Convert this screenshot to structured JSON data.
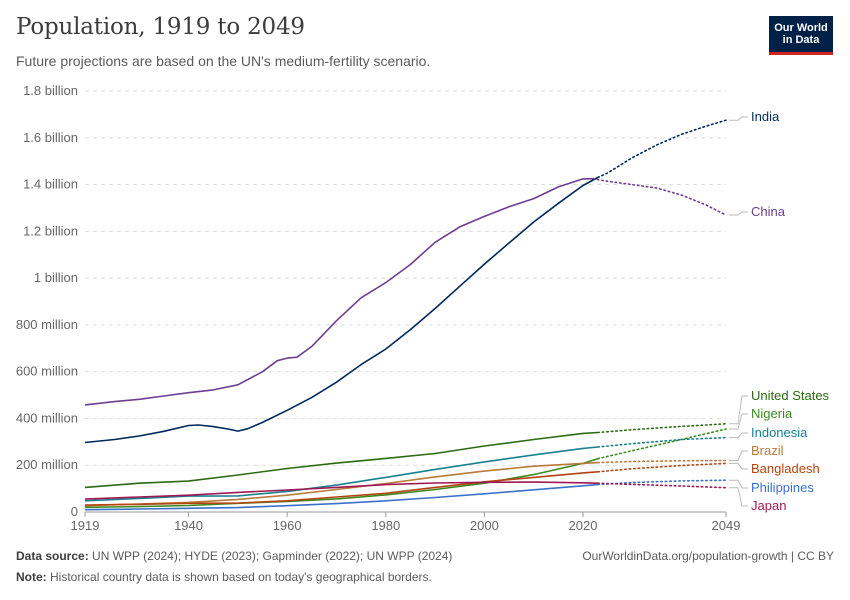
{
  "header": {
    "title": "Population, 1919 to 2049",
    "subtitle": "Future projections are based on the UN's medium-fertility scenario.",
    "logo_line1": "Our World",
    "logo_line2": "in Data"
  },
  "footer": {
    "source_label": "Data source:",
    "source_text": "UN WPP (2024); HYDE (2023); Gapminder (2022); UN WPP (2024)",
    "note_label": "Note:",
    "note_text": "Historical country data is shown based on today's geographical borders.",
    "right_text": "OurWorldinData.org/population-growth | CC BY"
  },
  "chart_data": {
    "type": "line",
    "title": "Population, 1919 to 2049",
    "y_ticks": [
      {
        "value": 0,
        "label": "0"
      },
      {
        "value": 200,
        "label": "200 million"
      },
      {
        "value": 400,
        "label": "400 million"
      },
      {
        "value": 600,
        "label": "600 million"
      },
      {
        "value": 800,
        "label": "800 million"
      },
      {
        "value": 1000,
        "label": "1 billion"
      },
      {
        "value": 1200,
        "label": "1.2 billion"
      },
      {
        "value": 1400,
        "label": "1.4 billion"
      },
      {
        "value": 1600,
        "label": "1.6 billion"
      },
      {
        "value": 1800,
        "label": "1.8 billion"
      }
    ],
    "x_ticks": [
      1919,
      1940,
      1960,
      1980,
      2000,
      2020,
      2049
    ],
    "xlim": [
      1919,
      2049
    ],
    "ylim": [
      0,
      1800
    ],
    "y_unit": "million",
    "projection_start": 2023,
    "series": [
      {
        "name": "India",
        "color": "#00295b",
        "x": [
          1919,
          1925,
          1930,
          1935,
          1940,
          1942,
          1945,
          1948,
          1950,
          1952,
          1955,
          1960,
          1965,
          1970,
          1975,
          1980,
          1985,
          1990,
          1995,
          2000,
          2005,
          2010,
          2015,
          2020,
          2023,
          2025,
          2030,
          2035,
          2040,
          2045,
          2049
        ],
        "y": [
          297,
          310,
          325,
          345,
          370,
          372,
          365,
          355,
          346,
          356,
          383,
          435,
          490,
          555,
          630,
          697,
          780,
          870,
          965,
          1060,
          1150,
          1240,
          1320,
          1396,
          1430,
          1450,
          1515,
          1570,
          1615,
          1650,
          1675
        ]
      },
      {
        "name": "China",
        "color": "#6d3e91",
        "x": [
          1919,
          1925,
          1930,
          1935,
          1940,
          1945,
          1950,
          1955,
          1958,
          1960,
          1962,
          1965,
          1970,
          1975,
          1980,
          1985,
          1990,
          1995,
          2000,
          2005,
          2010,
          2015,
          2020,
          2022,
          2025,
          2030,
          2035,
          2040,
          2045,
          2049
        ],
        "y": [
          458,
          472,
          482,
          496,
          510,
          522,
          544,
          600,
          647,
          658,
          662,
          708,
          818,
          916,
          981,
          1058,
          1153,
          1219,
          1264,
          1305,
          1340,
          1390,
          1424,
          1425,
          1414,
          1400,
          1385,
          1355,
          1312,
          1270
        ]
      },
      {
        "name": "United States",
        "color": "#2c6b11",
        "x": [
          1919,
          1930,
          1940,
          1950,
          1960,
          1970,
          1980,
          1990,
          2000,
          2010,
          2020,
          2023,
          2030,
          2040,
          2049
        ],
        "y": [
          105,
          123,
          132,
          158,
          186,
          209,
          229,
          250,
          282,
          310,
          336,
          340,
          352,
          366,
          377
        ]
      },
      {
        "name": "Nigeria",
        "color": "#3c8a1f",
        "x": [
          1919,
          1930,
          1940,
          1950,
          1960,
          1970,
          1980,
          1990,
          2000,
          2010,
          2020,
          2023,
          2030,
          2040,
          2049
        ],
        "y": [
          20,
          23,
          28,
          37,
          45,
          56,
          73,
          96,
          123,
          160,
          208,
          228,
          262,
          310,
          355
        ]
      },
      {
        "name": "Indonesia",
        "color": "#18818f",
        "x": [
          1919,
          1930,
          1940,
          1950,
          1960,
          1970,
          1980,
          1990,
          2000,
          2010,
          2020,
          2023,
          2030,
          2040,
          2049
        ],
        "y": [
          48,
          58,
          68,
          69,
          88,
          115,
          148,
          182,
          214,
          244,
          272,
          278,
          292,
          310,
          318
        ]
      },
      {
        "name": "Brazil",
        "color": "#b97a3a",
        "x": [
          1919,
          1930,
          1940,
          1950,
          1960,
          1970,
          1980,
          1990,
          2000,
          2010,
          2020,
          2023,
          2030,
          2040,
          2049
        ],
        "y": [
          27,
          34,
          41,
          54,
          72,
          96,
          122,
          150,
          175,
          196,
          208,
          211,
          216,
          219,
          220
        ]
      },
      {
        "name": "Bangladesh",
        "color": "#b34411",
        "x": [
          1919,
          1930,
          1940,
          1950,
          1960,
          1970,
          1980,
          1990,
          2000,
          2010,
          2020,
          2023,
          2030,
          2040,
          2049
        ],
        "y": [
          30,
          33,
          37,
          38,
          48,
          64,
          80,
          105,
          129,
          148,
          167,
          172,
          185,
          199,
          208
        ]
      },
      {
        "name": "Philippines",
        "color": "#3a72c9",
        "x": [
          1919,
          1930,
          1940,
          1950,
          1960,
          1970,
          1980,
          1990,
          2000,
          2010,
          2020,
          2023,
          2030,
          2040,
          2049
        ],
        "y": [
          10,
          13,
          16,
          19,
          27,
          36,
          48,
          62,
          78,
          95,
          112,
          117,
          126,
          133,
          136
        ]
      },
      {
        "name": "Japan",
        "color": "#a01853",
        "x": [
          1919,
          1930,
          1940,
          1950,
          1960,
          1970,
          1980,
          1990,
          2000,
          2010,
          2020,
          2023,
          2030,
          2040,
          2049
        ],
        "y": [
          55,
          64,
          72,
          84,
          94,
          105,
          117,
          124,
          127,
          128,
          125,
          123,
          118,
          111,
          104
        ]
      }
    ]
  }
}
